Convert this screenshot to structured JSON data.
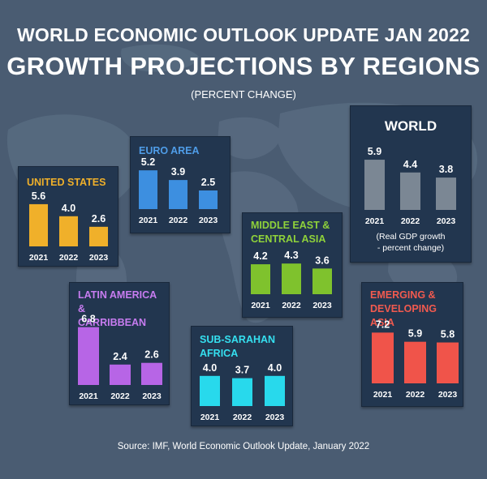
{
  "title_line1": "WORLD ECONOMIC OUTLOOK UPDATE JAN 2022",
  "title_line2": "GROWTH PROJECTIONS BY REGIONS",
  "subtitle": "(PERCENT CHANGE)",
  "source": "Source: IMF, World Economic Outlook Update, January 2022",
  "world_note_line1": "(Real GDP growth",
  "world_note_line2": "- percent change)",
  "colors": {
    "background": "#4a5c72",
    "panel": "#22364f",
    "united_states": "#f0b02a",
    "euro_area": "#3d8fe0",
    "world": "#7b8794",
    "middle_east": "#7fc22d",
    "latin_america": "#b765e6",
    "sub_saharan": "#28d9ec",
    "emerging_asia": "#f0544a"
  },
  "chart_data": [
    {
      "type": "bar",
      "title_lines": [
        "UNITED STATES"
      ],
      "categories": [
        "2021",
        "2022",
        "2023"
      ],
      "values": [
        5.6,
        4.0,
        2.6
      ],
      "value_labels": [
        "5.6",
        "4.0",
        "2.6"
      ],
      "color": "#f0b02a",
      "title_color": "#f0b02a"
    },
    {
      "type": "bar",
      "title_lines": [
        "EURO AREA"
      ],
      "categories": [
        "2021",
        "2022",
        "2023"
      ],
      "values": [
        5.2,
        3.9,
        2.5
      ],
      "value_labels": [
        "5.2",
        "3.9",
        "2.5"
      ],
      "color": "#3d8fe0",
      "title_color": "#4f9de8"
    },
    {
      "type": "bar",
      "title_lines": [
        "WORLD"
      ],
      "categories": [
        "2021",
        "2022",
        "2023"
      ],
      "values": [
        5.9,
        4.4,
        3.8
      ],
      "value_labels": [
        "5.9",
        "4.4",
        "3.8"
      ],
      "color": "#7b8794",
      "title_color": "#ffffff"
    },
    {
      "type": "bar",
      "title_lines": [
        "MIDDLE EAST &",
        "CENTRAL ASIA"
      ],
      "categories": [
        "2021",
        "2022",
        "2023"
      ],
      "values": [
        4.2,
        4.3,
        3.6
      ],
      "value_labels": [
        "4.2",
        "4.3",
        "3.6"
      ],
      "color": "#7fc22d",
      "title_color": "#8fd23a"
    },
    {
      "type": "bar",
      "title_lines": [
        "LATIN AMERICA &",
        "CARRIBBEAN"
      ],
      "categories": [
        "2021",
        "2022",
        "2023"
      ],
      "values": [
        6.8,
        2.4,
        2.6
      ],
      "value_labels": [
        "6.8",
        "2.4",
        "2.6"
      ],
      "color": "#b765e6",
      "title_color": "#c77cf0"
    },
    {
      "type": "bar",
      "title_lines": [
        "SUB-SARAHAN",
        "AFRICA"
      ],
      "categories": [
        "2021",
        "2022",
        "2023"
      ],
      "values": [
        4.0,
        3.7,
        4.0
      ],
      "value_labels": [
        "4.0",
        "3.7",
        "4.0"
      ],
      "color": "#28d9ec",
      "title_color": "#35e0f0"
    },
    {
      "type": "bar",
      "title_lines": [
        "EMERGING &",
        "DEVELOPING ASIA"
      ],
      "categories": [
        "2021",
        "2022",
        "2023"
      ],
      "values": [
        7.2,
        5.9,
        5.8
      ],
      "value_labels": [
        "7.2",
        "5.9",
        "5.8"
      ],
      "color": "#f0544a",
      "title_color": "#f25a4f"
    }
  ]
}
